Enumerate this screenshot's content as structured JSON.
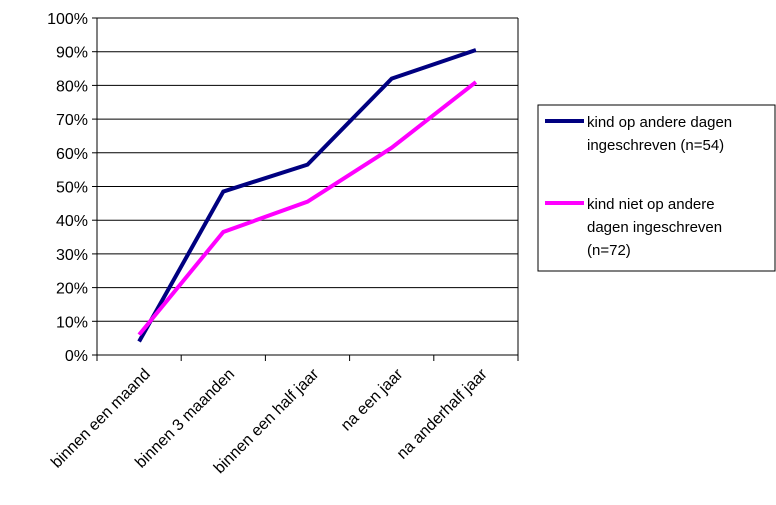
{
  "chart_data": {
    "type": "line",
    "categories": [
      "binnen een maand",
      "binnen 3 maanden",
      "binnen een half jaar",
      "na een jaar",
      "na anderhalf jaar"
    ],
    "series": [
      {
        "name": "kind op andere dagen ingeschreven (n=54)",
        "name_lines": [
          "kind op andere dagen",
          "ingeschreven (n=54)"
        ],
        "color": "#000080",
        "values": [
          4,
          48.5,
          56.5,
          82,
          90.5
        ]
      },
      {
        "name": "kind niet op andere dagen ingeschreven (n=72)",
        "name_lines": [
          "kind niet op andere",
          "dagen ingeschreven",
          "(n=72)"
        ],
        "color": "#FF00FF",
        "values": [
          6,
          36.5,
          45.5,
          61.5,
          81
        ]
      }
    ],
    "y_ticks": [
      "0%",
      "10%",
      "20%",
      "30%",
      "40%",
      "50%",
      "60%",
      "70%",
      "80%",
      "90%",
      "100%"
    ],
    "ylim": [
      0,
      100
    ],
    "grid": true,
    "legend_position": "right",
    "title": "",
    "xlabel": "",
    "ylabel": ""
  }
}
